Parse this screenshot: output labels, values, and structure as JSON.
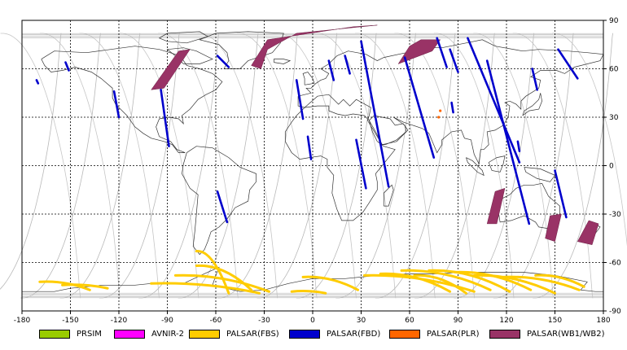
{
  "map": {
    "x_ticks": [
      -180,
      -150,
      -120,
      -90,
      -60,
      -30,
      0,
      30,
      60,
      90,
      120,
      150,
      180
    ],
    "y_ticks": [
      90,
      60,
      30,
      0,
      -30,
      -60,
      -90
    ],
    "x_range": [
      -180,
      180
    ],
    "y_range": [
      -90,
      90
    ],
    "gridlines": "dashed"
  },
  "legend": {
    "items": [
      {
        "label": "PRSIM",
        "color": "#99cc00"
      },
      {
        "label": "AVNIR-2",
        "color": "#ff00ff"
      },
      {
        "label": "PALSAR(FBS)",
        "color": "#ffcc00"
      },
      {
        "label": "PALSAR(FBD)",
        "color": "#0000cc"
      },
      {
        "label": "PALSAR(PLR)",
        "color": "#ff6600"
      },
      {
        "label": "PALSAR(WB1/WB2)",
        "color": "#993366"
      }
    ]
  },
  "chart_data": {
    "type": "map",
    "x_axis": "longitude",
    "y_axis": "latitude",
    "xlim": [
      -180,
      180
    ],
    "ylim": [
      -90,
      90
    ],
    "fbd_tracks": [
      [
        [
          -153,
          64
        ],
        [
          -151,
          59
        ]
      ],
      [
        [
          -171,
          53
        ],
        [
          -170,
          51
        ]
      ],
      [
        [
          -123,
          46
        ],
        [
          -120,
          30
        ]
      ],
      [
        [
          -94,
          47
        ],
        [
          -89,
          12
        ]
      ],
      [
        [
          -59,
          68
        ],
        [
          -52,
          61
        ]
      ],
      [
        [
          -59,
          -16
        ],
        [
          -53,
          -35
        ]
      ],
      [
        [
          -10,
          53
        ],
        [
          -6,
          29
        ]
      ],
      [
        [
          -3,
          18
        ],
        [
          -1,
          4
        ]
      ],
      [
        [
          10,
          65
        ],
        [
          13,
          53
        ]
      ],
      [
        [
          20,
          68
        ],
        [
          23,
          57
        ]
      ],
      [
        [
          30,
          77
        ],
        [
          47,
          -13
        ]
      ],
      [
        [
          27,
          16
        ],
        [
          33,
          -14
        ]
      ],
      [
        [
          57,
          67
        ],
        [
          75,
          5
        ]
      ],
      [
        [
          77,
          79
        ],
        [
          83,
          61
        ]
      ],
      [
        [
          85,
          72
        ],
        [
          90,
          58
        ]
      ],
      [
        [
          86,
          39
        ],
        [
          87,
          33
        ]
      ],
      [
        [
          96,
          79
        ],
        [
          128,
          2
        ]
      ],
      [
        [
          108,
          65
        ],
        [
          134,
          -36
        ]
      ],
      [
        [
          127,
          15
        ],
        [
          128,
          9
        ]
      ],
      [
        [
          136,
          60
        ],
        [
          139,
          47
        ]
      ],
      [
        [
          152,
          72
        ],
        [
          164,
          54
        ]
      ],
      [
        [
          150,
          -3
        ],
        [
          157,
          -32
        ]
      ]
    ],
    "wb_swaths": [
      [
        [
          -83,
          71
        ],
        [
          -76,
          72
        ],
        [
          -92,
          48
        ],
        [
          -100,
          47
        ]
      ],
      [
        [
          -38,
          62
        ],
        [
          -28,
          78
        ],
        [
          25,
          86
        ],
        [
          40,
          87
        ],
        [
          -10,
          82
        ],
        [
          -28,
          72
        ],
        [
          -32,
          60
        ]
      ],
      [
        [
          53,
          63
        ],
        [
          74,
          71
        ],
        [
          79,
          78
        ],
        [
          67,
          78
        ],
        [
          60,
          74
        ]
      ],
      [
        [
          113,
          -16
        ],
        [
          119,
          -14
        ],
        [
          114,
          -36
        ],
        [
          108,
          -36
        ]
      ],
      [
        [
          147,
          -31
        ],
        [
          154,
          -30
        ],
        [
          150,
          -47
        ],
        [
          144,
          -45
        ]
      ],
      [
        [
          171,
          -34
        ],
        [
          177,
          -36
        ],
        [
          173,
          -49
        ],
        [
          164,
          -47
        ]
      ]
    ],
    "fbs_tracks": [
      [
        [
          -155,
          -74
        ],
        [
          -127,
          -76
        ]
      ],
      [
        [
          -169,
          -72
        ],
        [
          -138,
          -77
        ]
      ],
      [
        [
          -100,
          -73
        ],
        [
          -33,
          -79
        ]
      ],
      [
        [
          -85,
          -68
        ],
        [
          -27,
          -78
        ]
      ],
      [
        [
          -72,
          -62
        ],
        [
          -38,
          -77
        ]
      ],
      [
        [
          -72,
          -53
        ],
        [
          -52,
          -79
        ]
      ],
      [
        [
          -6,
          -69
        ],
        [
          28,
          -77
        ]
      ],
      [
        [
          -13,
          -78
        ],
        [
          8,
          -79
        ]
      ],
      [
        [
          32,
          -68
        ],
        [
          100,
          -78
        ]
      ],
      [
        [
          55,
          -65
        ],
        [
          110,
          -77
        ]
      ],
      [
        [
          72,
          -65
        ],
        [
          122,
          -78
        ]
      ],
      [
        [
          88,
          -66
        ],
        [
          135,
          -77
        ]
      ],
      [
        [
          100,
          -68
        ],
        [
          150,
          -79
        ]
      ],
      [
        [
          118,
          -69
        ],
        [
          165,
          -77
        ]
      ],
      [
        [
          138,
          -68
        ],
        [
          168,
          -75
        ]
      ],
      [
        [
          42,
          -67
        ],
        [
          85,
          -78
        ]
      ],
      [
        [
          63,
          -68
        ],
        [
          95,
          -79
        ]
      ]
    ],
    "plr_points": [
      [
        79,
        34
      ],
      [
        78,
        30
      ]
    ]
  }
}
